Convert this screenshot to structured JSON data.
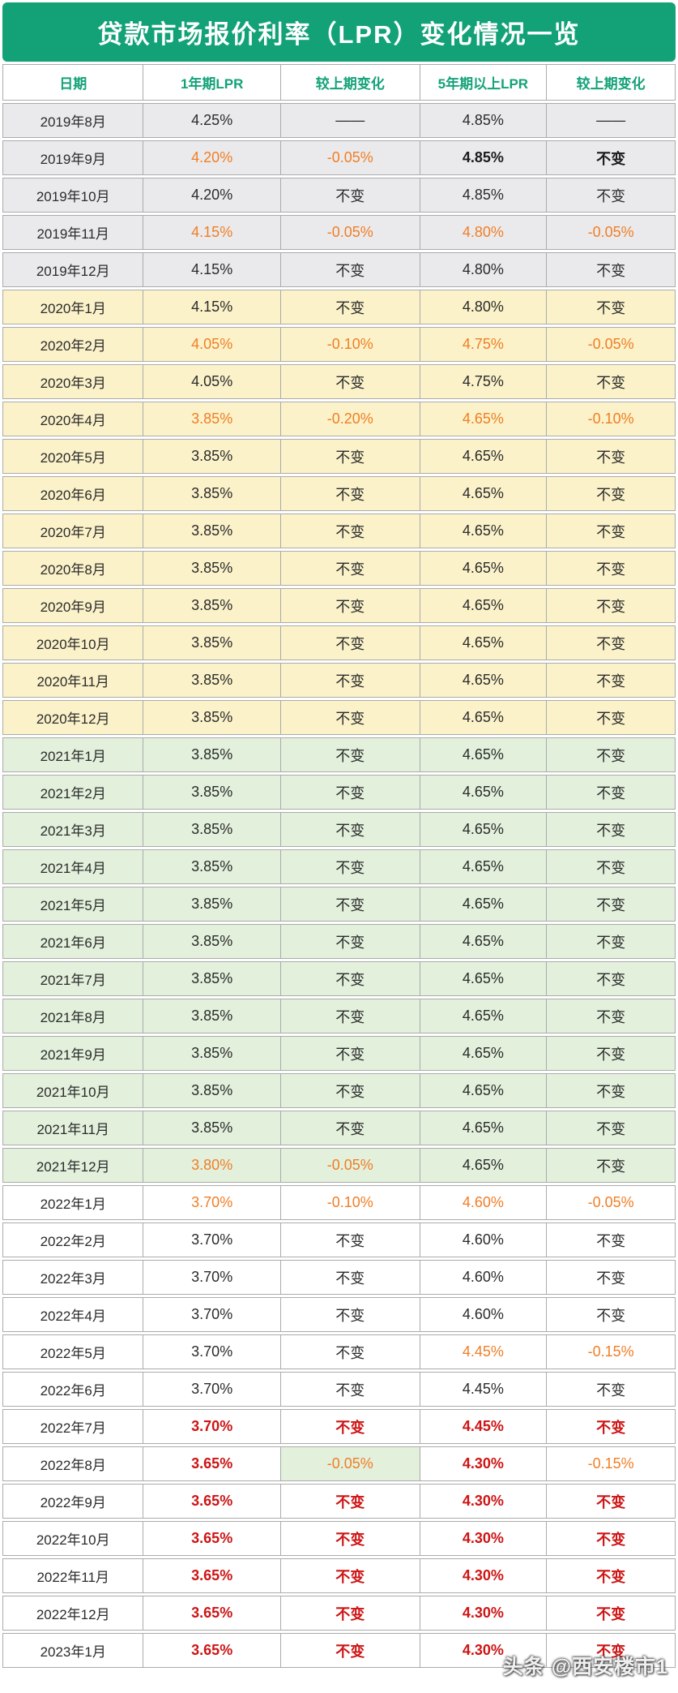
{
  "title": "贷款市场报价利率（LPR）变化情况一览",
  "colors": {
    "header_green": "#13A278",
    "header_text": "#FFFFFF",
    "column_header_text": "#13A278",
    "row_2019_bg": "#EAEAEC",
    "row_2020_bg": "#FBF2C9",
    "row_2021_bg": "#E2F0DC",
    "row_2022_bg": "#FFFFFF",
    "text_default": "#2B2B2B",
    "text_decrease_orange": "#F07E26",
    "text_recent_red": "#CE1414",
    "border_gray": "#ABABAB"
  },
  "watermark": {
    "text": "头条 @西安楼市1"
  },
  "chart_data": {
    "type": "table",
    "title": "贷款市场报价利率（LPR）变化情况一览",
    "columns": [
      "日期",
      "1年期LPR",
      "较上期变化",
      "5年期以上LPR",
      "较上期变化"
    ],
    "rows": [
      [
        "2019年8月",
        "4.25%",
        "——",
        "4.85%",
        "——"
      ],
      [
        "2019年9月",
        "4.20%",
        "-0.05%",
        "4.85%",
        "不变"
      ],
      [
        "2019年10月",
        "4.20%",
        "不变",
        "4.85%",
        "不变"
      ],
      [
        "2019年11月",
        "4.15%",
        "-0.05%",
        "4.80%",
        "-0.05%"
      ],
      [
        "2019年12月",
        "4.15%",
        "不变",
        "4.80%",
        "不变"
      ],
      [
        "2020年1月",
        "4.15%",
        "不变",
        "4.80%",
        "不变"
      ],
      [
        "2020年2月",
        "4.05%",
        "-0.10%",
        "4.75%",
        "-0.05%"
      ],
      [
        "2020年3月",
        "4.05%",
        "不变",
        "4.75%",
        "不变"
      ],
      [
        "2020年4月",
        "3.85%",
        "-0.20%",
        "4.65%",
        "-0.10%"
      ],
      [
        "2020年5月",
        "3.85%",
        "不变",
        "4.65%",
        "不变"
      ],
      [
        "2020年6月",
        "3.85%",
        "不变",
        "4.65%",
        "不变"
      ],
      [
        "2020年7月",
        "3.85%",
        "不变",
        "4.65%",
        "不变"
      ],
      [
        "2020年8月",
        "3.85%",
        "不变",
        "4.65%",
        "不变"
      ],
      [
        "2020年9月",
        "3.85%",
        "不变",
        "4.65%",
        "不变"
      ],
      [
        "2020年10月",
        "3.85%",
        "不变",
        "4.65%",
        "不变"
      ],
      [
        "2020年11月",
        "3.85%",
        "不变",
        "4.65%",
        "不变"
      ],
      [
        "2020年12月",
        "3.85%",
        "不变",
        "4.65%",
        "不变"
      ],
      [
        "2021年1月",
        "3.85%",
        "不变",
        "4.65%",
        "不变"
      ],
      [
        "2021年2月",
        "3.85%",
        "不变",
        "4.65%",
        "不变"
      ],
      [
        "2021年3月",
        "3.85%",
        "不变",
        "4.65%",
        "不变"
      ],
      [
        "2021年4月",
        "3.85%",
        "不变",
        "4.65%",
        "不变"
      ],
      [
        "2021年5月",
        "3.85%",
        "不变",
        "4.65%",
        "不变"
      ],
      [
        "2021年6月",
        "3.85%",
        "不变",
        "4.65%",
        "不变"
      ],
      [
        "2021年7月",
        "3.85%",
        "不变",
        "4.65%",
        "不变"
      ],
      [
        "2021年8月",
        "3.85%",
        "不变",
        "4.65%",
        "不变"
      ],
      [
        "2021年9月",
        "3.85%",
        "不变",
        "4.65%",
        "不变"
      ],
      [
        "2021年10月",
        "3.85%",
        "不变",
        "4.65%",
        "不变"
      ],
      [
        "2021年11月",
        "3.85%",
        "不变",
        "4.65%",
        "不变"
      ],
      [
        "2021年12月",
        "3.80%",
        "-0.05%",
        "4.65%",
        "不变"
      ],
      [
        "2022年1月",
        "3.70%",
        "-0.10%",
        "4.60%",
        "-0.05%"
      ],
      [
        "2022年2月",
        "3.70%",
        "不变",
        "4.60%",
        "不变"
      ],
      [
        "2022年3月",
        "3.70%",
        "不变",
        "4.60%",
        "不变"
      ],
      [
        "2022年4月",
        "3.70%",
        "不变",
        "4.60%",
        "不变"
      ],
      [
        "2022年5月",
        "3.70%",
        "不变",
        "4.45%",
        "-0.15%"
      ],
      [
        "2022年6月",
        "3.70%",
        "不变",
        "4.45%",
        "不变"
      ],
      [
        "2022年7月",
        "3.70%",
        "不变",
        "4.45%",
        "不变"
      ],
      [
        "2022年8月",
        "3.65%",
        "-0.05%",
        "4.30%",
        "-0.15%"
      ],
      [
        "2022年9月",
        "3.65%",
        "不变",
        "4.30%",
        "不变"
      ],
      [
        "2022年10月",
        "3.65%",
        "不变",
        "4.30%",
        "不变"
      ],
      [
        "2022年11月",
        "3.65%",
        "不变",
        "4.30%",
        "不变"
      ],
      [
        "2022年12月",
        "3.65%",
        "不变",
        "4.30%",
        "不变"
      ],
      [
        "2023年1月",
        "3.65%",
        "不变",
        "4.30%",
        "不变"
      ]
    ]
  },
  "table": {
    "row_meta": [
      {
        "g": "gray",
        "s": [
          "k",
          "k",
          "k",
          "k"
        ]
      },
      {
        "g": "gray",
        "s": [
          "o",
          "o",
          "kb",
          "kb"
        ]
      },
      {
        "g": "gray",
        "s": [
          "k",
          "k",
          "k",
          "k"
        ]
      },
      {
        "g": "gray",
        "s": [
          "o",
          "o",
          "o",
          "o"
        ]
      },
      {
        "g": "gray",
        "s": [
          "k",
          "k",
          "k",
          "k"
        ]
      },
      {
        "g": "yellow",
        "s": [
          "k",
          "k",
          "k",
          "k"
        ]
      },
      {
        "g": "yellow",
        "s": [
          "o",
          "o",
          "o",
          "o"
        ]
      },
      {
        "g": "yellow",
        "s": [
          "k",
          "k",
          "k",
          "k"
        ]
      },
      {
        "g": "yellow",
        "s": [
          "o",
          "o",
          "o",
          "o"
        ]
      },
      {
        "g": "yellow",
        "s": [
          "k",
          "k",
          "k",
          "k"
        ]
      },
      {
        "g": "yellow",
        "s": [
          "k",
          "k",
          "k",
          "k"
        ]
      },
      {
        "g": "yellow",
        "s": [
          "k",
          "k",
          "k",
          "k"
        ]
      },
      {
        "g": "yellow",
        "s": [
          "k",
          "k",
          "k",
          "k"
        ]
      },
      {
        "g": "yellow",
        "s": [
          "k",
          "k",
          "k",
          "k"
        ]
      },
      {
        "g": "yellow",
        "s": [
          "k",
          "k",
          "k",
          "k"
        ]
      },
      {
        "g": "yellow",
        "s": [
          "k",
          "k",
          "k",
          "k"
        ]
      },
      {
        "g": "yellow",
        "s": [
          "k",
          "k",
          "k",
          "k"
        ]
      },
      {
        "g": "green",
        "s": [
          "k",
          "k",
          "k",
          "k"
        ]
      },
      {
        "g": "green",
        "s": [
          "k",
          "k",
          "k",
          "k"
        ]
      },
      {
        "g": "green",
        "s": [
          "k",
          "k",
          "k",
          "k"
        ]
      },
      {
        "g": "green",
        "s": [
          "k",
          "k",
          "k",
          "k"
        ]
      },
      {
        "g": "green",
        "s": [
          "k",
          "k",
          "k",
          "k"
        ]
      },
      {
        "g": "green",
        "s": [
          "k",
          "k",
          "k",
          "k"
        ]
      },
      {
        "g": "green",
        "s": [
          "k",
          "k",
          "k",
          "k"
        ]
      },
      {
        "g": "green",
        "s": [
          "k",
          "k",
          "k",
          "k"
        ]
      },
      {
        "g": "green",
        "s": [
          "k",
          "k",
          "k",
          "k"
        ]
      },
      {
        "g": "green",
        "s": [
          "k",
          "k",
          "k",
          "k"
        ]
      },
      {
        "g": "green",
        "s": [
          "k",
          "k",
          "k",
          "k"
        ]
      },
      {
        "g": "green",
        "s": [
          "o",
          "o",
          "k",
          "k"
        ]
      },
      {
        "g": "white",
        "s": [
          "o",
          "o",
          "o",
          "o"
        ]
      },
      {
        "g": "white",
        "s": [
          "k",
          "k",
          "k",
          "k"
        ]
      },
      {
        "g": "white",
        "s": [
          "k",
          "k",
          "k",
          "k"
        ]
      },
      {
        "g": "white",
        "s": [
          "k",
          "k",
          "k",
          "k"
        ]
      },
      {
        "g": "white",
        "s": [
          "k",
          "k",
          "o",
          "o"
        ]
      },
      {
        "g": "white",
        "s": [
          "k",
          "k",
          "k",
          "k"
        ]
      },
      {
        "g": "white",
        "s": [
          "r",
          "r",
          "r",
          "r"
        ]
      },
      {
        "g": "white",
        "s": [
          "r",
          "og",
          "r",
          "o"
        ]
      },
      {
        "g": "white",
        "s": [
          "r",
          "r",
          "r",
          "r"
        ]
      },
      {
        "g": "white",
        "s": [
          "r",
          "r",
          "r",
          "r"
        ]
      },
      {
        "g": "white",
        "s": [
          "r",
          "r",
          "r",
          "r"
        ]
      },
      {
        "g": "white",
        "s": [
          "r",
          "r",
          "r",
          "r"
        ]
      },
      {
        "g": "white",
        "s": [
          "r",
          "r",
          "r",
          "r"
        ]
      }
    ]
  }
}
